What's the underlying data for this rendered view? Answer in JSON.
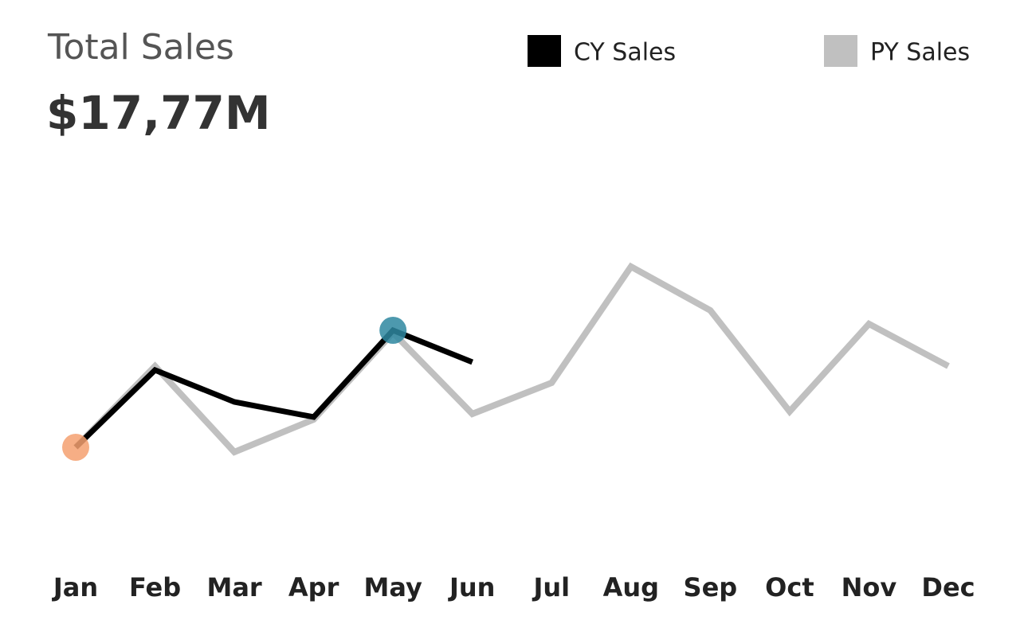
{
  "chart_data": {
    "type": "line",
    "title": "Total Sales",
    "subtitle": "$17,77M",
    "categories": [
      "Jan",
      "Feb",
      "Mar",
      "Apr",
      "May",
      "Jun",
      "Jul",
      "Aug",
      "Sep",
      "Oct",
      "Nov",
      "Dec"
    ],
    "series": [
      {
        "name": "CY Sales",
        "color": "#000000",
        "values": [
          2.22,
          3.19,
          2.79,
          2.6,
          3.69,
          3.29,
          null,
          null,
          null,
          null,
          null,
          null
        ]
      },
      {
        "name": "PY Sales",
        "color": "#c0c0c0",
        "values": [
          2.22,
          3.24,
          2.16,
          2.57,
          3.66,
          2.64,
          3.03,
          4.49,
          3.94,
          2.67,
          3.77,
          3.24
        ]
      }
    ],
    "ylim": [
      1,
      5.5
    ],
    "min_marker_color": "#f4a070",
    "max_marker_color": "#2e87a0",
    "legend": "top-right"
  }
}
